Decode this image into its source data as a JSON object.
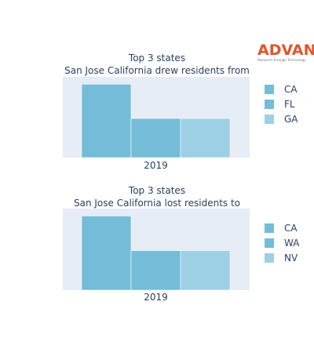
{
  "logo": {
    "name": "ADVAN",
    "tagline": "Research through Technology"
  },
  "colors": {
    "plot_bg": "#e5ecf6",
    "title": "#2a3f5f",
    "logo": "#e2552a"
  },
  "chart_data": [
    {
      "type": "bar",
      "title_lines": [
        "Top 3 states",
        "San Jose California drew residents from"
      ],
      "categories": [
        "2019"
      ],
      "series": [
        {
          "name": "CA",
          "values": [
            3.0
          ],
          "color": "#74bcd8"
        },
        {
          "name": "FL",
          "values": [
            1.6
          ],
          "color": "#74bcd8"
        },
        {
          "name": "GA",
          "values": [
            1.6
          ],
          "color": "#9dd0e4"
        }
      ],
      "ylim": [
        0,
        3.3
      ],
      "grid": false,
      "yaxis_visible": false,
      "legend_position": "right"
    },
    {
      "type": "bar",
      "title_lines": [
        "Top 3 states",
        "San Jose California lost residents to"
      ],
      "categories": [
        "2019"
      ],
      "series": [
        {
          "name": "CA",
          "values": [
            3.0
          ],
          "color": "#74bcd8"
        },
        {
          "name": "WA",
          "values": [
            1.6
          ],
          "color": "#74bcd8"
        },
        {
          "name": "NV",
          "values": [
            1.6
          ],
          "color": "#9dd0e4"
        }
      ],
      "ylim": [
        0,
        3.3
      ],
      "grid": false,
      "yaxis_visible": false,
      "legend_position": "right"
    }
  ]
}
